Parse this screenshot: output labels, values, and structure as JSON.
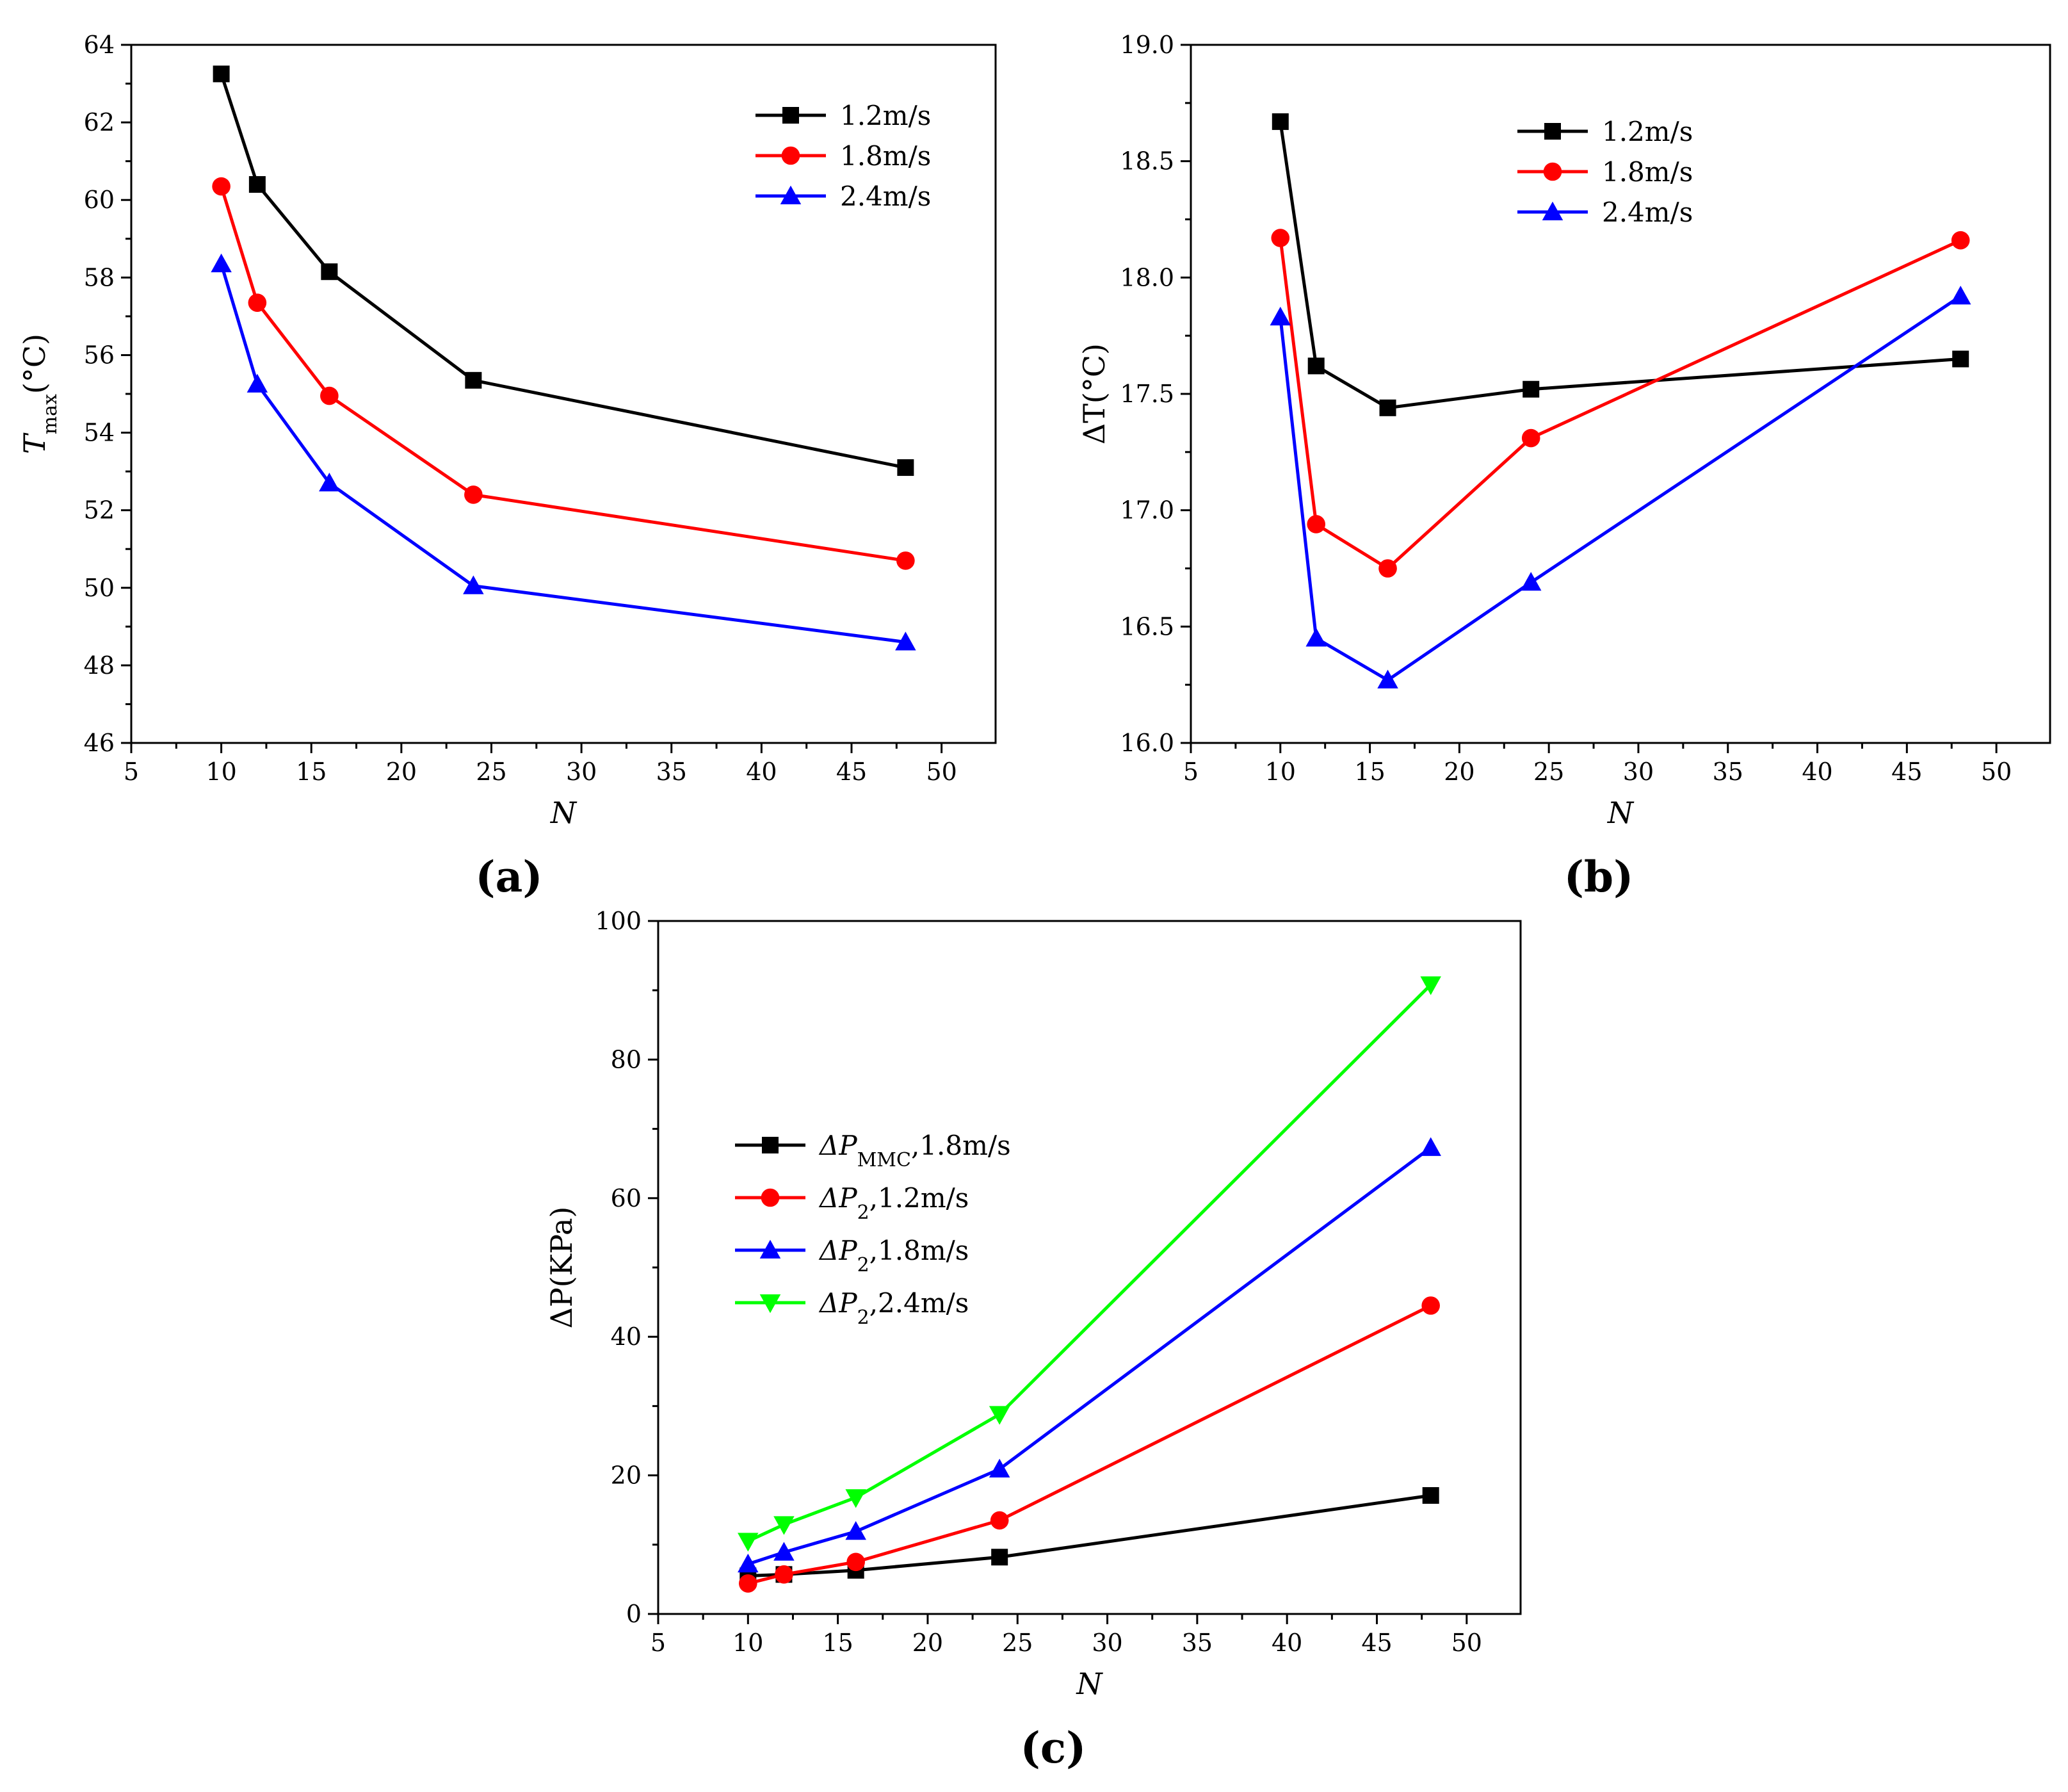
{
  "colors": {
    "black": "#000000",
    "red": "#ff0000",
    "blue": "#0000ff",
    "green": "#00ff00"
  },
  "chart_data": [
    {
      "id": "a",
      "type": "line",
      "panel_label": "(a)",
      "xlabel": "N",
      "ylabel": "T",
      "ylabel_sub": "max",
      "ylabel_unit": "(°C)",
      "xlim": [
        5,
        53
      ],
      "ylim": [
        46,
        64
      ],
      "xticks": [
        5,
        10,
        15,
        20,
        25,
        30,
        35,
        40,
        45,
        50
      ],
      "yticks": [
        46,
        48,
        50,
        52,
        54,
        56,
        58,
        60,
        62,
        64
      ],
      "legend_position": "top-right",
      "x": [
        10,
        12,
        16,
        24,
        48
      ],
      "series": [
        {
          "name": "1.2m/s",
          "color": "#000000",
          "marker": "square",
          "values": [
            63.25,
            60.4,
            58.15,
            55.35,
            53.1
          ]
        },
        {
          "name": "1.8m/s",
          "color": "#ff0000",
          "marker": "circle",
          "values": [
            60.35,
            57.35,
            54.95,
            52.4,
            50.7
          ]
        },
        {
          "name": "2.4m/s",
          "color": "#0000ff",
          "marker": "triangle-up",
          "values": [
            58.35,
            55.25,
            52.7,
            50.05,
            48.6
          ]
        }
      ]
    },
    {
      "id": "b",
      "type": "line",
      "panel_label": "(b)",
      "xlabel": "N",
      "ylabel": "ΔT(°C)",
      "xlim": [
        5,
        53
      ],
      "ylim": [
        16.0,
        19.0
      ],
      "xticks": [
        5,
        10,
        15,
        20,
        25,
        30,
        35,
        40,
        45,
        50
      ],
      "yticks": [
        "16.0",
        "16.5",
        "17.0",
        "17.5",
        "18.0",
        "18.5",
        "19.0"
      ],
      "legend_position": "top-center",
      "x": [
        10,
        12,
        16,
        24,
        48
      ],
      "series": [
        {
          "name": "1.2m/s",
          "color": "#000000",
          "marker": "square",
          "values": [
            18.67,
            17.62,
            17.44,
            17.52,
            17.65
          ]
        },
        {
          "name": "1.8m/s",
          "color": "#ff0000",
          "marker": "circle",
          "values": [
            18.17,
            16.94,
            16.75,
            17.31,
            18.16
          ]
        },
        {
          "name": "2.4m/s",
          "color": "#0000ff",
          "marker": "triangle-up",
          "values": [
            17.83,
            16.45,
            16.27,
            16.69,
            17.92
          ]
        }
      ]
    },
    {
      "id": "c",
      "type": "line",
      "panel_label": "(c)",
      "xlabel": "N",
      "ylabel": "ΔP(KPa)",
      "xlim": [
        5,
        53
      ],
      "ylim": [
        0,
        100
      ],
      "xticks": [
        5,
        10,
        15,
        20,
        25,
        30,
        35,
        40,
        45,
        50
      ],
      "yticks": [
        0,
        20,
        40,
        60,
        80,
        100
      ],
      "legend_position": "center-left",
      "x": [
        10,
        12,
        16,
        24,
        48
      ],
      "series": [
        {
          "name": "ΔP_MMC,1.8m/s",
          "name_main": "ΔP",
          "name_sub": "MMC",
          "name_rest": ",1.8m/s",
          "color": "#000000",
          "marker": "square",
          "values": [
            5.5,
            5.7,
            6.3,
            8.2,
            17.1
          ]
        },
        {
          "name": "ΔP_2,1.2m/s",
          "name_main": "ΔP",
          "name_sub": "2",
          "name_rest": ",1.2m/s",
          "color": "#ff0000",
          "marker": "circle",
          "values": [
            4.4,
            5.7,
            7.5,
            13.5,
            44.5
          ]
        },
        {
          "name": "ΔP_2,1.8m/s",
          "name_main": "ΔP",
          "name_sub": "2",
          "name_rest": ",1.8m/s",
          "color": "#0000ff",
          "marker": "triangle-up",
          "values": [
            7.2,
            8.9,
            11.9,
            20.9,
            67.3
          ]
        },
        {
          "name": "ΔP_2,2.4m/s",
          "name_main": "ΔP",
          "name_sub": "2",
          "name_rest": ",2.4m/s",
          "color": "#00ff00",
          "marker": "triangle-down",
          "values": [
            10.5,
            12.9,
            16.8,
            28.8,
            90.8
          ]
        }
      ]
    }
  ]
}
